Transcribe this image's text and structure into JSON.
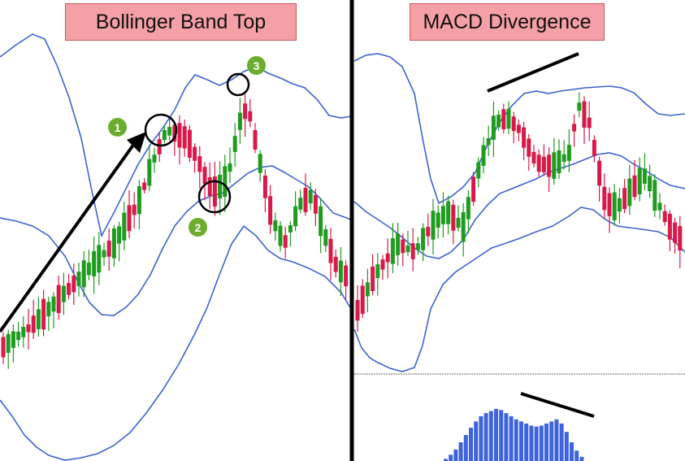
{
  "titles": {
    "left": "Bollinger Band Top",
    "right": "MACD Divergence"
  },
  "markers": [
    "1",
    "2",
    "3"
  ],
  "colors": {
    "bull": "#1f9b1f",
    "bear": "#d8194a",
    "band": "#3c63d0",
    "histogram": "#3d63dd",
    "annotation": "#000000",
    "title_fill": "#f4a0a6",
    "marker_fill": "#6bad2f"
  },
  "chart_data": [
    {
      "type": "candlestick",
      "title": "Bollinger Band Top",
      "overlays": [
        "upper-band",
        "middle-band",
        "lower-band"
      ],
      "annotations": [
        {
          "label": "1",
          "note": "circle at upper band touch"
        },
        {
          "label": "2",
          "note": "circle at middle band pullback"
        },
        {
          "label": "3",
          "note": "circle at upper band top"
        }
      ],
      "grid": false
    },
    {
      "type": "candlestick",
      "title": "MACD Divergence",
      "overlays": [
        "upper-band",
        "middle-band",
        "lower-band"
      ],
      "grid": false
    },
    {
      "type": "bar",
      "title": "",
      "series": [
        {
          "values": [
            2,
            6,
            11,
            18,
            25,
            32,
            38,
            43,
            46,
            48,
            50,
            49,
            46,
            43,
            40,
            38,
            36,
            34,
            33,
            34,
            36,
            38,
            40,
            36,
            28,
            18,
            10,
            4
          ]
        }
      ],
      "annotations": [
        {
          "note": "divergence trend line over histogram peaks"
        }
      ]
    }
  ]
}
